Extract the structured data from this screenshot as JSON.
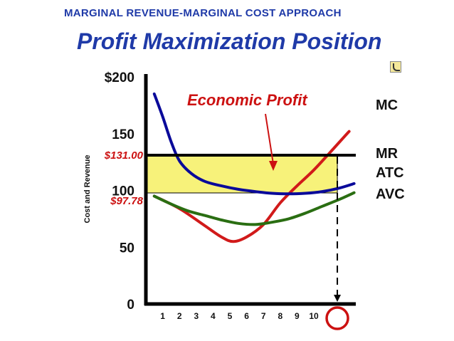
{
  "chart_data": {
    "type": "line",
    "supertitle": "MARGINAL REVENUE-MARGINAL COST APPROACH",
    "title": "Profit Maximization Position",
    "xlabel": "",
    "ylabel": "Cost and Revenue",
    "y_ticks": [
      0,
      50,
      100,
      150,
      200
    ],
    "y_tick_labels": [
      "0",
      "50",
      "100",
      "150",
      "$200"
    ],
    "x_ticks": [
      1,
      2,
      3,
      4,
      5,
      6,
      7,
      8,
      9,
      10
    ],
    "x_tick_labels": [
      "1",
      "2",
      "3",
      "4",
      "5",
      "6",
      "7",
      "8",
      "9",
      "10"
    ],
    "xlim": [
      0,
      12.5
    ],
    "ylim": [
      0,
      200
    ],
    "grid": false,
    "price_labels": {
      "price": "$131.00",
      "atc_at_q": "$97.78"
    },
    "price_value": 131.0,
    "atc_value": 97.78,
    "profit_quantity": 11.4,
    "annotation": "Economic Profit",
    "series": [
      {
        "name": "MC",
        "color": "#d11a1a",
        "x": [
          0.5,
          2,
          3.5,
          4.5,
          5.2,
          6,
          7,
          8,
          9,
          10,
          11,
          12.1
        ],
        "y": [
          95,
          84,
          69,
          59,
          55,
          59,
          70,
          89,
          104,
          118,
          134,
          152
        ]
      },
      {
        "name": "ATC",
        "color": "#0a0a9a",
        "x": [
          0.5,
          1,
          1.5,
          2,
          2.7,
          3.5,
          4.5,
          5.5,
          6.5,
          7.5,
          8.5,
          9.5,
          10.5,
          11.5,
          12.4
        ],
        "y": [
          185,
          165,
          143,
          126,
          115,
          108,
          104,
          101,
          99,
          97.5,
          97,
          97.5,
          99,
          102,
          106
        ]
      },
      {
        "name": "AVC",
        "color": "#2a6e12",
        "x": [
          0.5,
          1.5,
          2.5,
          3.5,
          4.5,
          5.5,
          6.5,
          7.5,
          8.5,
          9.5,
          10.5,
          11.5,
          12.4
        ],
        "y": [
          95,
          88,
          82,
          78,
          74,
          71,
          70,
          72,
          75,
          80,
          86,
          92,
          98
        ]
      },
      {
        "name": "MR",
        "color": "#000000",
        "x": [
          0,
          12.5
        ],
        "y": [
          131,
          131
        ]
      }
    ],
    "legend": "curve labels at right edge",
    "colors": {
      "profit_fill": "#f7f27a",
      "annotation": "#cc1111",
      "marker": "#cc1111"
    },
    "icon": "profit-icon"
  }
}
